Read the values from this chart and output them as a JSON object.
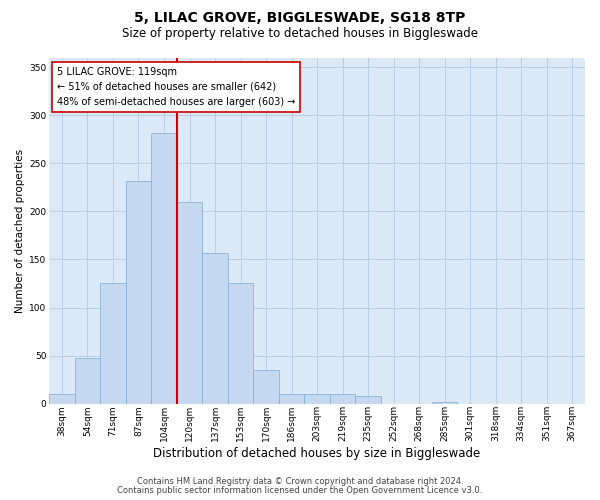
{
  "title": "5, LILAC GROVE, BIGGLESWADE, SG18 8TP",
  "subtitle": "Size of property relative to detached houses in Biggleswade",
  "xlabel": "Distribution of detached houses by size in Biggleswade",
  "ylabel": "Number of detached properties",
  "bin_labels": [
    "38sqm",
    "54sqm",
    "71sqm",
    "87sqm",
    "104sqm",
    "120sqm",
    "137sqm",
    "153sqm",
    "170sqm",
    "186sqm",
    "203sqm",
    "219sqm",
    "235sqm",
    "252sqm",
    "268sqm",
    "285sqm",
    "301sqm",
    "318sqm",
    "334sqm",
    "351sqm",
    "367sqm"
  ],
  "bar_heights": [
    10,
    47,
    125,
    232,
    282,
    210,
    157,
    125,
    35,
    10,
    10,
    10,
    8,
    0,
    0,
    2,
    0,
    0,
    0,
    0,
    0
  ],
  "bar_color": "#c5d8f0",
  "bar_edge_color": "#7badd4",
  "vline_x": 5,
  "vline_color": "#cc0000",
  "annotation_text": "5 LILAC GROVE: 119sqm\n← 51% of detached houses are smaller (642)\n48% of semi-detached houses are larger (603) →",
  "annotation_box_color": "#ffffff",
  "annotation_box_edge": "#cc0000",
  "ylim": [
    0,
    360
  ],
  "yticks": [
    0,
    50,
    100,
    150,
    200,
    250,
    300,
    350
  ],
  "footer1": "Contains HM Land Registry data © Crown copyright and database right 2024.",
  "footer2": "Contains public sector information licensed under the Open Government Licence v3.0.",
  "fig_bg_color": "#ffffff",
  "plot_bg_color": "#dce9f8",
  "title_fontsize": 10,
  "subtitle_fontsize": 8.5,
  "xlabel_fontsize": 8.5,
  "ylabel_fontsize": 7.5,
  "tick_fontsize": 6.5,
  "annotation_fontsize": 7,
  "footer_fontsize": 6,
  "num_bins": 21
}
